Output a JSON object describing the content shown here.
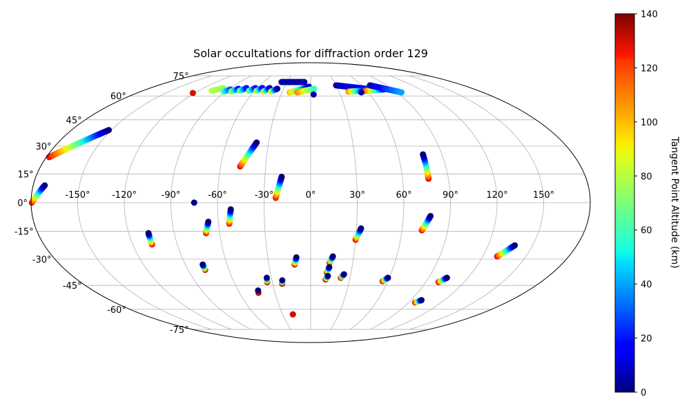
{
  "chart_data": {
    "type": "scatter",
    "projection": "mollweide",
    "title": "Solar occultations for diffraction order 129",
    "xlabel": "",
    "ylabel": "",
    "grid": true,
    "lon_ticks": [
      -150,
      -120,
      -90,
      -60,
      -30,
      0,
      30,
      60,
      90,
      120,
      150
    ],
    "lon_tick_labels": [
      "-150°",
      "-120°",
      "-90°",
      "-60°",
      "-30°",
      "0°",
      "30°",
      "60°",
      "90°",
      "120°",
      "150°"
    ],
    "lat_ticks": [
      75,
      60,
      45,
      30,
      15,
      0,
      -15,
      -30,
      -45,
      -60,
      -75
    ],
    "lat_tick_labels": [
      "75°",
      "60°",
      "45°",
      "30°",
      "15°",
      "0°",
      "-15°",
      "-30°",
      "-45°",
      "-60°",
      "-75°"
    ],
    "colorbar": {
      "label": "Tangent Point Altitude (km)",
      "min": 0,
      "max": 140,
      "ticks": [
        0,
        20,
        40,
        60,
        80,
        100,
        120,
        140
      ],
      "tick_labels": [
        "0",
        "20",
        "40",
        "60",
        "80",
        "100",
        "120",
        "140"
      ],
      "colormap": "jet"
    },
    "tracks": [
      {
        "start": [
          -179.5,
          0.0
        ],
        "end": [
          -172.5,
          9.0
        ],
        "alt_start": 130,
        "alt_end": 0
      },
      {
        "start": [
          -178.0,
          24.0
        ],
        "end": [
          -152.0,
          39.0
        ],
        "alt_start": 130,
        "alt_end": 0
      },
      {
        "start": [
          -47.0,
          19.0
        ],
        "end": [
          -38.5,
          32.0
        ],
        "alt_start": 130,
        "alt_end": 0
      },
      {
        "start": [
          -22.5,
          2.5
        ],
        "end": [
          -19.0,
          13.5
        ],
        "alt_start": 130,
        "alt_end": 0
      },
      {
        "start": [
          77.0,
          12.5
        ],
        "end": [
          77.0,
          25.5
        ],
        "alt_start": 130,
        "alt_end": 0
      },
      {
        "start": [
          -69.0,
          -16.0
        ],
        "end": [
          -66.5,
          -10.0
        ],
        "alt_start": 130,
        "alt_end": 0
      },
      {
        "start": [
          -53.0,
          -11.0
        ],
        "end": [
          -51.5,
          -3.5
        ],
        "alt_start": 130,
        "alt_end": 0
      },
      {
        "start": [
          -107.0,
          -22.0
        ],
        "end": [
          -107.0,
          -16.0
        ],
        "alt_start": 130,
        "alt_end": 0
      },
      {
        "start": [
          30.0,
          -19.5
        ],
        "end": [
          33.0,
          -13.5
        ],
        "alt_start": 130,
        "alt_end": 0
      },
      {
        "start": [
          73.0,
          -14.5
        ],
        "end": [
          77.5,
          -7.0
        ],
        "alt_start": 130,
        "alt_end": 0
      },
      {
        "start": [
          130.0,
          -28.5
        ],
        "end": [
          138.0,
          -22.5
        ],
        "alt_start": 130,
        "alt_end": 0
      },
      {
        "start": [
          -11.5,
          -33.0
        ],
        "end": [
          -10.0,
          -29.0
        ],
        "alt_start": 130,
        "alt_end": 0
      },
      {
        "start": [
          13.5,
          -32.0
        ],
        "end": [
          15.5,
          -28.5
        ],
        "alt_start": 130,
        "alt_end": 0
      },
      {
        "start": [
          12.0,
          -37.5
        ],
        "end": [
          13.5,
          -34.5
        ],
        "alt_start": 130,
        "alt_end": 0
      },
      {
        "start": [
          -77.5,
          -36.0
        ],
        "end": [
          -77.5,
          -33.0
        ],
        "alt_start": 130,
        "alt_end": 0
      },
      {
        "start": [
          11.5,
          -41.5
        ],
        "end": [
          13.0,
          -39.5
        ],
        "alt_start": 130,
        "alt_end": 0
      },
      {
        "start": [
          23.0,
          -40.5
        ],
        "end": [
          25.0,
          -38.5
        ],
        "alt_start": 130,
        "alt_end": 0
      },
      {
        "start": [
          56.0,
          -42.5
        ],
        "end": [
          59.0,
          -40.5
        ],
        "alt_start": 130,
        "alt_end": 0
      },
      {
        "start": [
          100.0,
          -43.0
        ],
        "end": [
          104.0,
          -40.5
        ],
        "alt_start": 130,
        "alt_end": 0
      },
      {
        "start": [
          -34.0,
          -43.0
        ],
        "end": [
          -33.5,
          -40.5
        ],
        "alt_start": 130,
        "alt_end": 0
      },
      {
        "start": [
          -22.5,
          -44.0
        ],
        "end": [
          -22.0,
          -42.0
        ],
        "alt_start": 130,
        "alt_end": 0
      },
      {
        "start": [
          -44.0,
          -49.5
        ],
        "end": [
          -43.5,
          -48.0
        ],
        "alt_start": 130,
        "alt_end": 0
      },
      {
        "start": [
          96.0,
          -55.5
        ],
        "end": [
          99.5,
          -54.0
        ],
        "alt_start": 130,
        "alt_end": 0
      },
      {
        "start": [
          -19.0,
          -63.5
        ],
        "end": [
          -19.0,
          -63.5
        ],
        "alt_start": 130,
        "alt_end": 130
      },
      {
        "start": [
          -106.0,
          63.5
        ],
        "end": [
          -98.0,
          65.5
        ],
        "alt_start": 80,
        "alt_end": 75
      },
      {
        "start": [
          -92.0,
          63.0
        ],
        "end": [
          -88.0,
          64.5
        ],
        "alt_start": 60,
        "alt_end": 30
      },
      {
        "start": [
          -84.0,
          63.0
        ],
        "end": [
          -80.0,
          65.0
        ],
        "alt_start": 80,
        "alt_end": 20
      },
      {
        "start": [
          -76.0,
          63.5
        ],
        "end": [
          -72.0,
          65.5
        ],
        "alt_start": 70,
        "alt_end": 20
      },
      {
        "start": [
          -66.0,
          63.5
        ],
        "end": [
          -62.0,
          65.5
        ],
        "alt_start": 70,
        "alt_end": 20
      },
      {
        "start": [
          -58.0,
          63.5
        ],
        "end": [
          -54.0,
          65.5
        ],
        "alt_start": 80,
        "alt_end": 15
      },
      {
        "start": [
          -50.0,
          63.0
        ],
        "end": [
          -46.0,
          65.5
        ],
        "alt_start": 85,
        "alt_end": 10
      },
      {
        "start": [
          -42.0,
          63.0
        ],
        "end": [
          -37.0,
          65.0
        ],
        "alt_start": 90,
        "alt_end": 5
      },
      {
        "start": [
          -37.0,
          70.0
        ],
        "end": [
          -8.0,
          70.0
        ],
        "alt_start": 5,
        "alt_end": 5
      },
      {
        "start": [
          -22.0,
          62.5
        ],
        "end": [
          -2.0,
          66.5
        ],
        "alt_start": 100,
        "alt_end": 10
      },
      {
        "start": [
          -14.0,
          62.5
        ],
        "end": [
          4.0,
          65.0
        ],
        "alt_start": 110,
        "alt_end": 60
      },
      {
        "start": [
          30.0,
          67.5
        ],
        "end": [
          62.0,
          65.0
        ],
        "alt_start": 5,
        "alt_end": 20
      },
      {
        "start": [
          40.0,
          63.0
        ],
        "end": [
          58.0,
          63.5
        ],
        "alt_start": 110,
        "alt_end": 10
      },
      {
        "start": [
          58.0,
          63.5
        ],
        "end": [
          80.0,
          64.5
        ],
        "alt_start": 120,
        "alt_end": 20
      },
      {
        "start": [
          70.0,
          67.5
        ],
        "end": [
          95.0,
          62.5
        ],
        "alt_start": 5,
        "alt_end": 40
      },
      {
        "start": [
          -75.0,
          0.0
        ],
        "end": [
          -75.0,
          0.0
        ],
        "alt_start": 0,
        "alt_end": 0
      }
    ],
    "isolated_points": [
      {
        "lon": 3.0,
        "lat": 61.0,
        "alt": 5
      },
      {
        "lon": -122.0,
        "lat": 62.0,
        "alt": 130
      },
      {
        "lon": 53.0,
        "lat": 62.5,
        "alt": 5
      }
    ]
  }
}
